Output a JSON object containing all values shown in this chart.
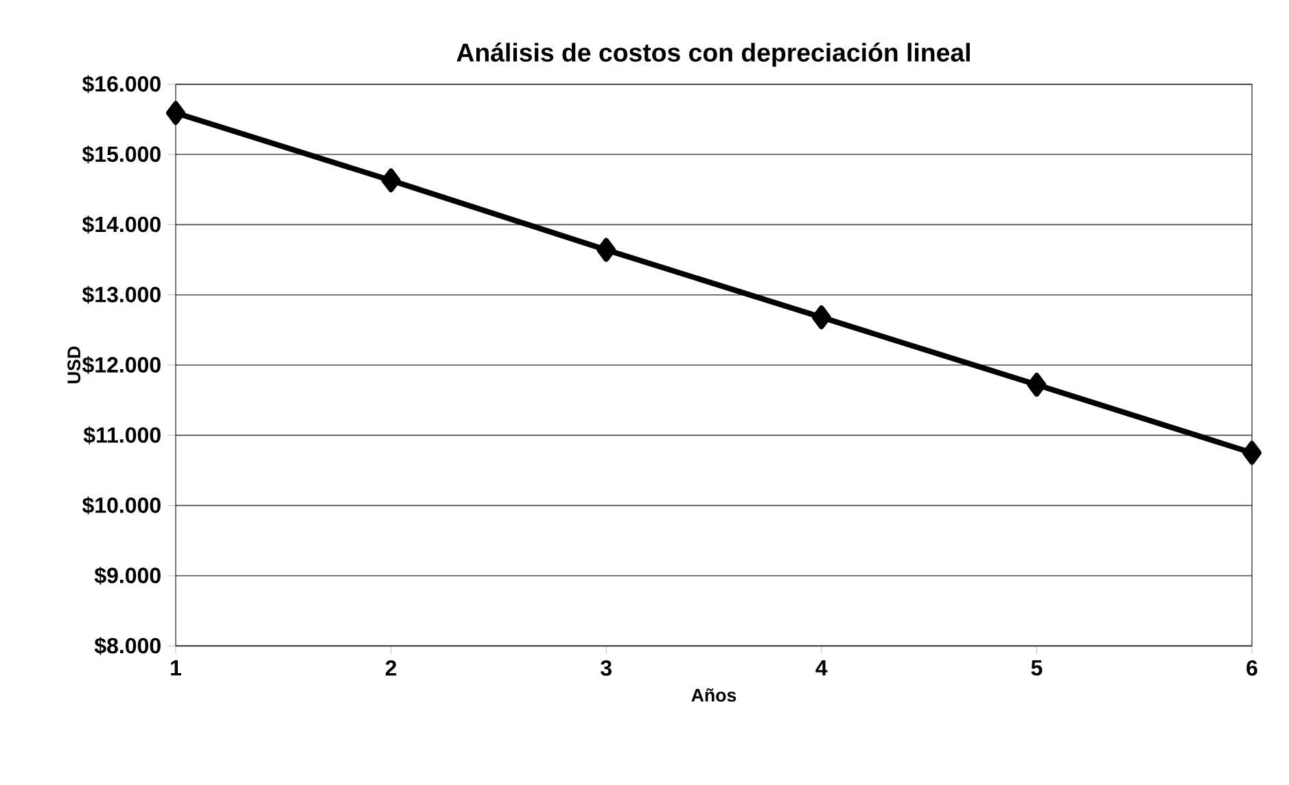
{
  "chart_data": {
    "type": "line",
    "title": "Análisis de costos con depreciación lineal",
    "xlabel": "Años",
    "ylabel": "USD",
    "categories": [
      "1",
      "2",
      "3",
      "4",
      "5",
      "6"
    ],
    "series": [
      {
        "color": "#000000",
        "values": [
          15590,
          14630,
          13640,
          12680,
          11720,
          10750
        ]
      }
    ],
    "ylim": [
      8000,
      16000
    ],
    "yticks": [
      {
        "value": 8000,
        "label": "$8.000"
      },
      {
        "value": 9000,
        "label": "$9.000"
      },
      {
        "value": 10000,
        "label": "$10.000"
      },
      {
        "value": 11000,
        "label": "$11.000"
      },
      {
        "value": 12000,
        "label": "$12.000"
      },
      {
        "value": 13000,
        "label": "$13.000"
      },
      {
        "value": 14000,
        "label": "$14.000"
      },
      {
        "value": 15000,
        "label": "$15.000"
      },
      {
        "value": 16000,
        "label": "$16.000"
      }
    ],
    "grid": "y",
    "marker": "diamond",
    "line_style": "solid"
  }
}
